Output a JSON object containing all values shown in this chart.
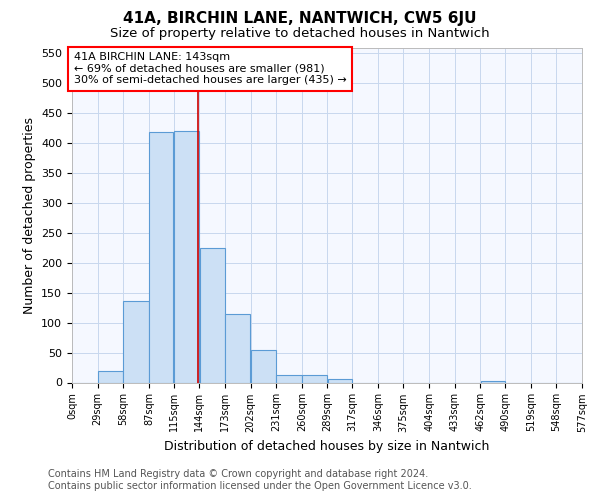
{
  "title": "41A, BIRCHIN LANE, NANTWICH, CW5 6JU",
  "subtitle": "Size of property relative to detached houses in Nantwich",
  "xlabel": "Distribution of detached houses by size in Nantwich",
  "ylabel": "Number of detached properties",
  "bar_edges": [
    0,
    29,
    58,
    87,
    115,
    144,
    173,
    202,
    231,
    260,
    289,
    317,
    346,
    375,
    404,
    433,
    462,
    490,
    519,
    548,
    577
  ],
  "bar_heights": [
    0,
    20,
    137,
    418,
    420,
    225,
    115,
    55,
    13,
    13,
    6,
    0,
    0,
    0,
    0,
    0,
    2,
    0,
    0,
    0
  ],
  "bar_color": "#cce0f5",
  "bar_edge_color": "#5b9bd5",
  "grid_color": "#c8d8ee",
  "background_color": "#ffffff",
  "plot_bg_color": "#f5f8ff",
  "property_size": 143,
  "annotation_text": "41A BIRCHIN LANE: 143sqm\n← 69% of detached houses are smaller (981)\n30% of semi-detached houses are larger (435) →",
  "annotation_box_color": "white",
  "annotation_border_color": "red",
  "vline_color": "#cc0000",
  "ylim": [
    0,
    560
  ],
  "yticks": [
    0,
    50,
    100,
    150,
    200,
    250,
    300,
    350,
    400,
    450,
    500,
    550
  ],
  "tick_labels": [
    "0sqm",
    "29sqm",
    "58sqm",
    "87sqm",
    "115sqm",
    "144sqm",
    "173sqm",
    "202sqm",
    "231sqm",
    "260sqm",
    "289sqm",
    "317sqm",
    "346sqm",
    "375sqm",
    "404sqm",
    "433sqm",
    "462sqm",
    "490sqm",
    "519sqm",
    "548sqm",
    "577sqm"
  ],
  "footer_line1": "Contains HM Land Registry data © Crown copyright and database right 2024.",
  "footer_line2": "Contains public sector information licensed under the Open Government Licence v3.0."
}
